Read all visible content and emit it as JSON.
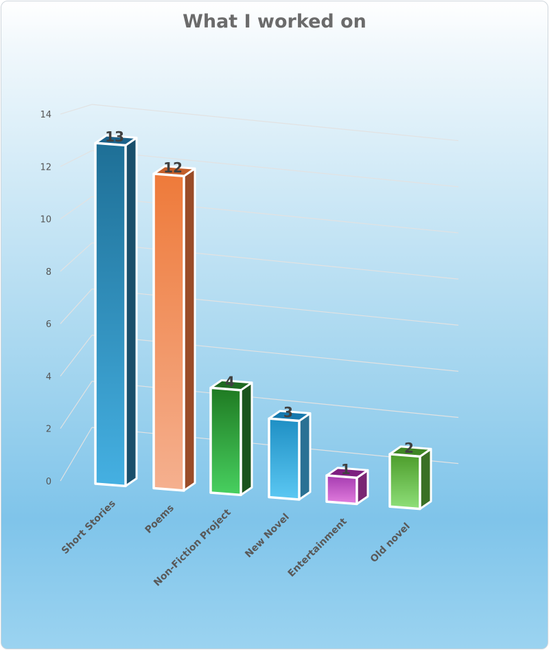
{
  "chart_data": {
    "type": "bar",
    "title": "What I worked on",
    "categories": [
      "Short Stories",
      "Poems",
      "Non-Fiction Project",
      "New Novel",
      "Entertainment",
      "Old novel"
    ],
    "values": [
      13,
      12,
      4,
      3,
      1,
      2
    ],
    "ylim": [
      0,
      14
    ],
    "yticks": [
      "0",
      "2",
      "4",
      "6",
      "8",
      "10",
      "12",
      "14"
    ],
    "grid": true,
    "data_labels": true,
    "style_3d": true,
    "colors": [
      {
        "top": "#1e6f96",
        "bottom": "#45b0e2",
        "side": "#1a4f6b",
        "cap": "#1b628a"
      },
      {
        "top": "#ee7a3a",
        "bottom": "#f5b08f",
        "side": "#9a4c28",
        "cap": "#c45f2a"
      },
      {
        "top": "#1f7a22",
        "bottom": "#48d060",
        "side": "#1b541d",
        "cap": "#1f6a21"
      },
      {
        "top": "#1e8fc4",
        "bottom": "#5cc8f3",
        "side": "#2a7194",
        "cap": "#1678ad"
      },
      {
        "top": "#a53bb0",
        "bottom": "#e27ede",
        "side": "#7a2673",
        "cap": "#7d1f80"
      },
      {
        "top": "#4c9c2a",
        "bottom": "#8fe07a",
        "side": "#3a7025",
        "cap": "#3f8624"
      }
    ]
  }
}
